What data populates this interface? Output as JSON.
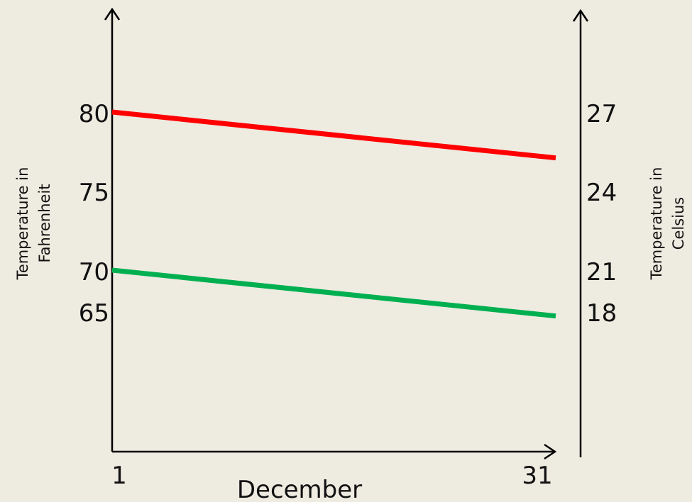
{
  "chart_data": {
    "type": "line",
    "title": "",
    "xlabel": "December",
    "x": [
      1,
      31
    ],
    "x_ticks": [
      "1",
      "31"
    ],
    "left_axis": {
      "label": [
        "Temperature in",
        "Fahrenheit"
      ],
      "ticks": [
        "80",
        "75",
        "70",
        "65"
      ],
      "tick_values": [
        80,
        75,
        70,
        65
      ]
    },
    "right_axis": {
      "label": [
        "Temperature in",
        "Celsius"
      ],
      "ticks": [
        "27",
        "24",
        "21",
        "18"
      ],
      "tick_values": [
        27,
        24,
        21,
        18
      ]
    },
    "series": [
      {
        "color": "#ff0000",
        "axis": "left",
        "values": [
          80,
          77.1
        ]
      },
      {
        "color": "#00b050",
        "axis": "left",
        "values": [
          70,
          67.1
        ]
      }
    ],
    "grid": false
  }
}
